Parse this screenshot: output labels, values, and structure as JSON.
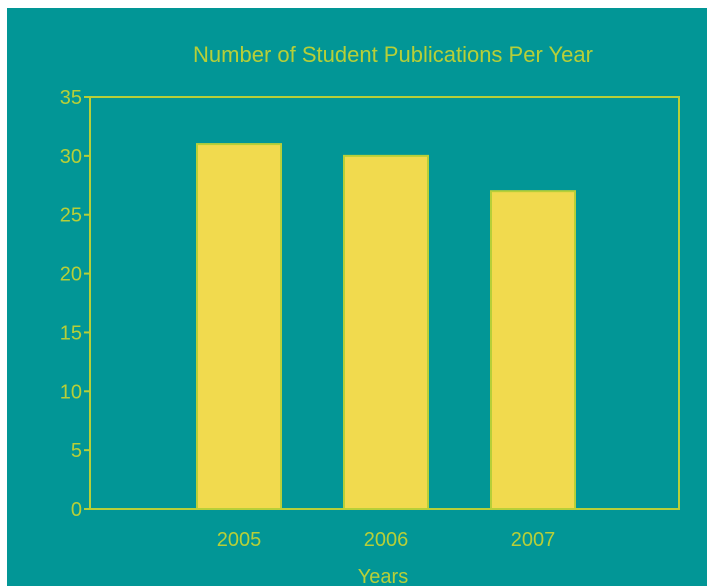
{
  "colors": {
    "background": "#029696",
    "bar_fill": "#f1da4e",
    "bar_stroke": "#b7cf38",
    "axis": "#b7cf38",
    "text": "#b7cf38"
  },
  "chart_data": {
    "type": "bar",
    "title": "Number of Student Publications Per Year",
    "xlabel": "Years",
    "ylabel": "",
    "categories": [
      "2005",
      "2006",
      "2007"
    ],
    "values": [
      31,
      30,
      27
    ],
    "ylim": [
      0,
      35
    ],
    "yticks": [
      0,
      5,
      10,
      15,
      20,
      25,
      30,
      35
    ],
    "ytick_labels": [
      "0",
      "5",
      "10",
      "15",
      "20",
      "25",
      "30",
      "35"
    ],
    "grid": false,
    "legend": "none"
  }
}
